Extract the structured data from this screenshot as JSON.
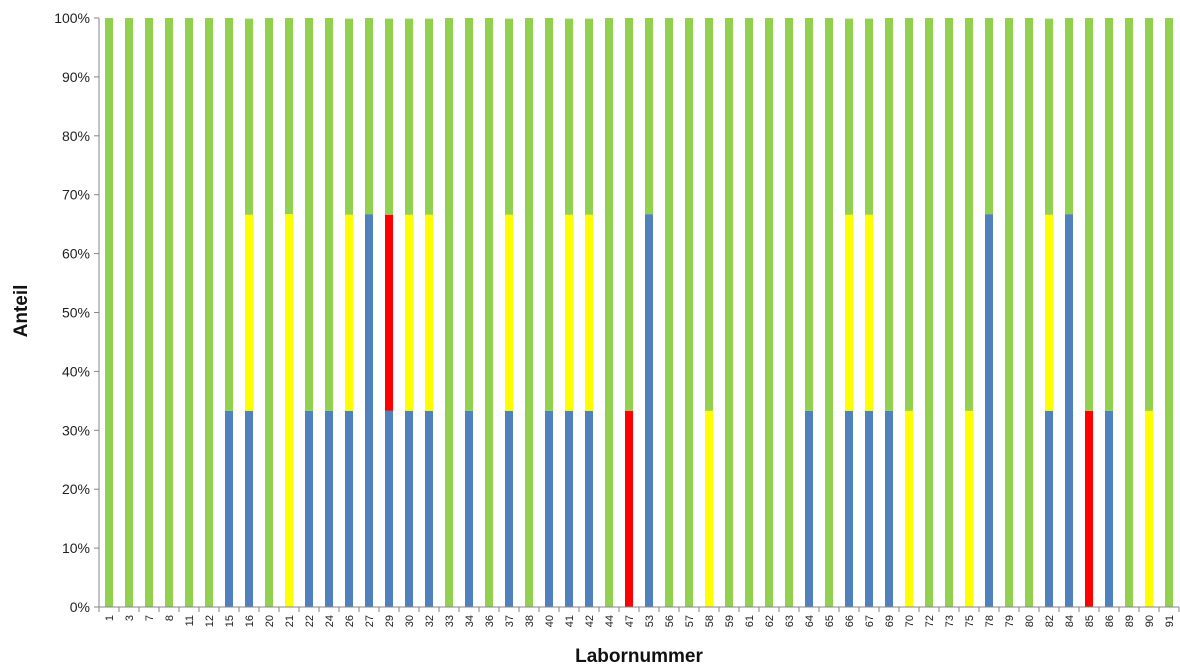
{
  "chart_data": {
    "type": "bar",
    "stacked": "percent",
    "xlabel": "Labornummer",
    "ylabel": "Anteil",
    "ylim": [
      0,
      100
    ],
    "yticks": [
      "0%",
      "10%",
      "20%",
      "30%",
      "40%",
      "50%",
      "60%",
      "70%",
      "80%",
      "90%",
      "100%"
    ],
    "grid": false,
    "legend": "none",
    "categories": [
      "1",
      "3",
      "7",
      "8",
      "11",
      "12",
      "15",
      "16",
      "20",
      "21",
      "22",
      "24",
      "26",
      "27",
      "29",
      "30",
      "32",
      "33",
      "34",
      "36",
      "37",
      "38",
      "40",
      "41",
      "42",
      "44",
      "47",
      "53",
      "56",
      "57",
      "58",
      "59",
      "61",
      "62",
      "63",
      "64",
      "65",
      "66",
      "67",
      "69",
      "70",
      "72",
      "73",
      "75",
      "78",
      "79",
      "80",
      "82",
      "84",
      "85",
      "86",
      "89",
      "90",
      "91"
    ],
    "series": [
      {
        "color": "#4f81bd",
        "values": [
          0,
          0,
          0,
          0,
          0,
          0,
          33.3,
          33.3,
          0,
          0,
          33.3,
          33.3,
          33.3,
          66.7,
          33.3,
          33.3,
          33.3,
          0,
          33.3,
          0,
          33.3,
          0,
          33.3,
          33.3,
          33.3,
          0,
          0,
          66.7,
          0,
          0,
          0,
          0,
          0,
          0,
          0,
          33.3,
          0,
          33.3,
          33.3,
          33.3,
          0,
          0,
          0,
          0,
          66.7,
          0,
          0,
          33.3,
          66.7,
          0,
          33.3,
          0,
          0,
          0
        ]
      },
      {
        "color": "#ffff00",
        "values": [
          0,
          0,
          0,
          0,
          0,
          0,
          0,
          33.3,
          0,
          66.7,
          0,
          0,
          33.3,
          0,
          0,
          33.3,
          33.3,
          0,
          0,
          0,
          33.3,
          0,
          0,
          33.3,
          33.3,
          0,
          0,
          0,
          0,
          0,
          33.3,
          0,
          0,
          0,
          0,
          0,
          0,
          33.3,
          33.3,
          0,
          33.3,
          0,
          0,
          33.3,
          0,
          0,
          0,
          33.3,
          0,
          0,
          0,
          0,
          33.3,
          0
        ]
      },
      {
        "color": "#ff0000",
        "values": [
          0,
          0,
          0,
          0,
          0,
          0,
          0,
          0,
          0,
          0,
          0,
          0,
          0,
          0,
          33.3,
          0,
          0,
          0,
          0,
          0,
          0,
          0,
          0,
          0,
          0,
          0,
          33.3,
          0,
          0,
          0,
          0,
          0,
          0,
          0,
          0,
          0,
          0,
          0,
          0,
          0,
          0,
          0,
          0,
          0,
          0,
          0,
          0,
          0,
          0,
          33.3,
          0,
          0,
          0,
          0
        ]
      },
      {
        "color": "#92d050",
        "values": [
          100,
          100,
          100,
          100,
          100,
          100,
          66.7,
          33.3,
          100,
          33.3,
          66.7,
          66.7,
          33.3,
          33.3,
          33.3,
          33.3,
          33.3,
          100,
          66.7,
          100,
          33.3,
          100,
          66.7,
          33.3,
          33.3,
          100,
          66.7,
          33.3,
          100,
          100,
          66.7,
          100,
          100,
          100,
          100,
          66.7,
          100,
          33.3,
          33.3,
          66.7,
          66.7,
          100,
          100,
          66.7,
          33.3,
          100,
          100,
          33.3,
          33.3,
          66.7,
          66.7,
          100,
          66.7,
          100
        ]
      }
    ]
  }
}
